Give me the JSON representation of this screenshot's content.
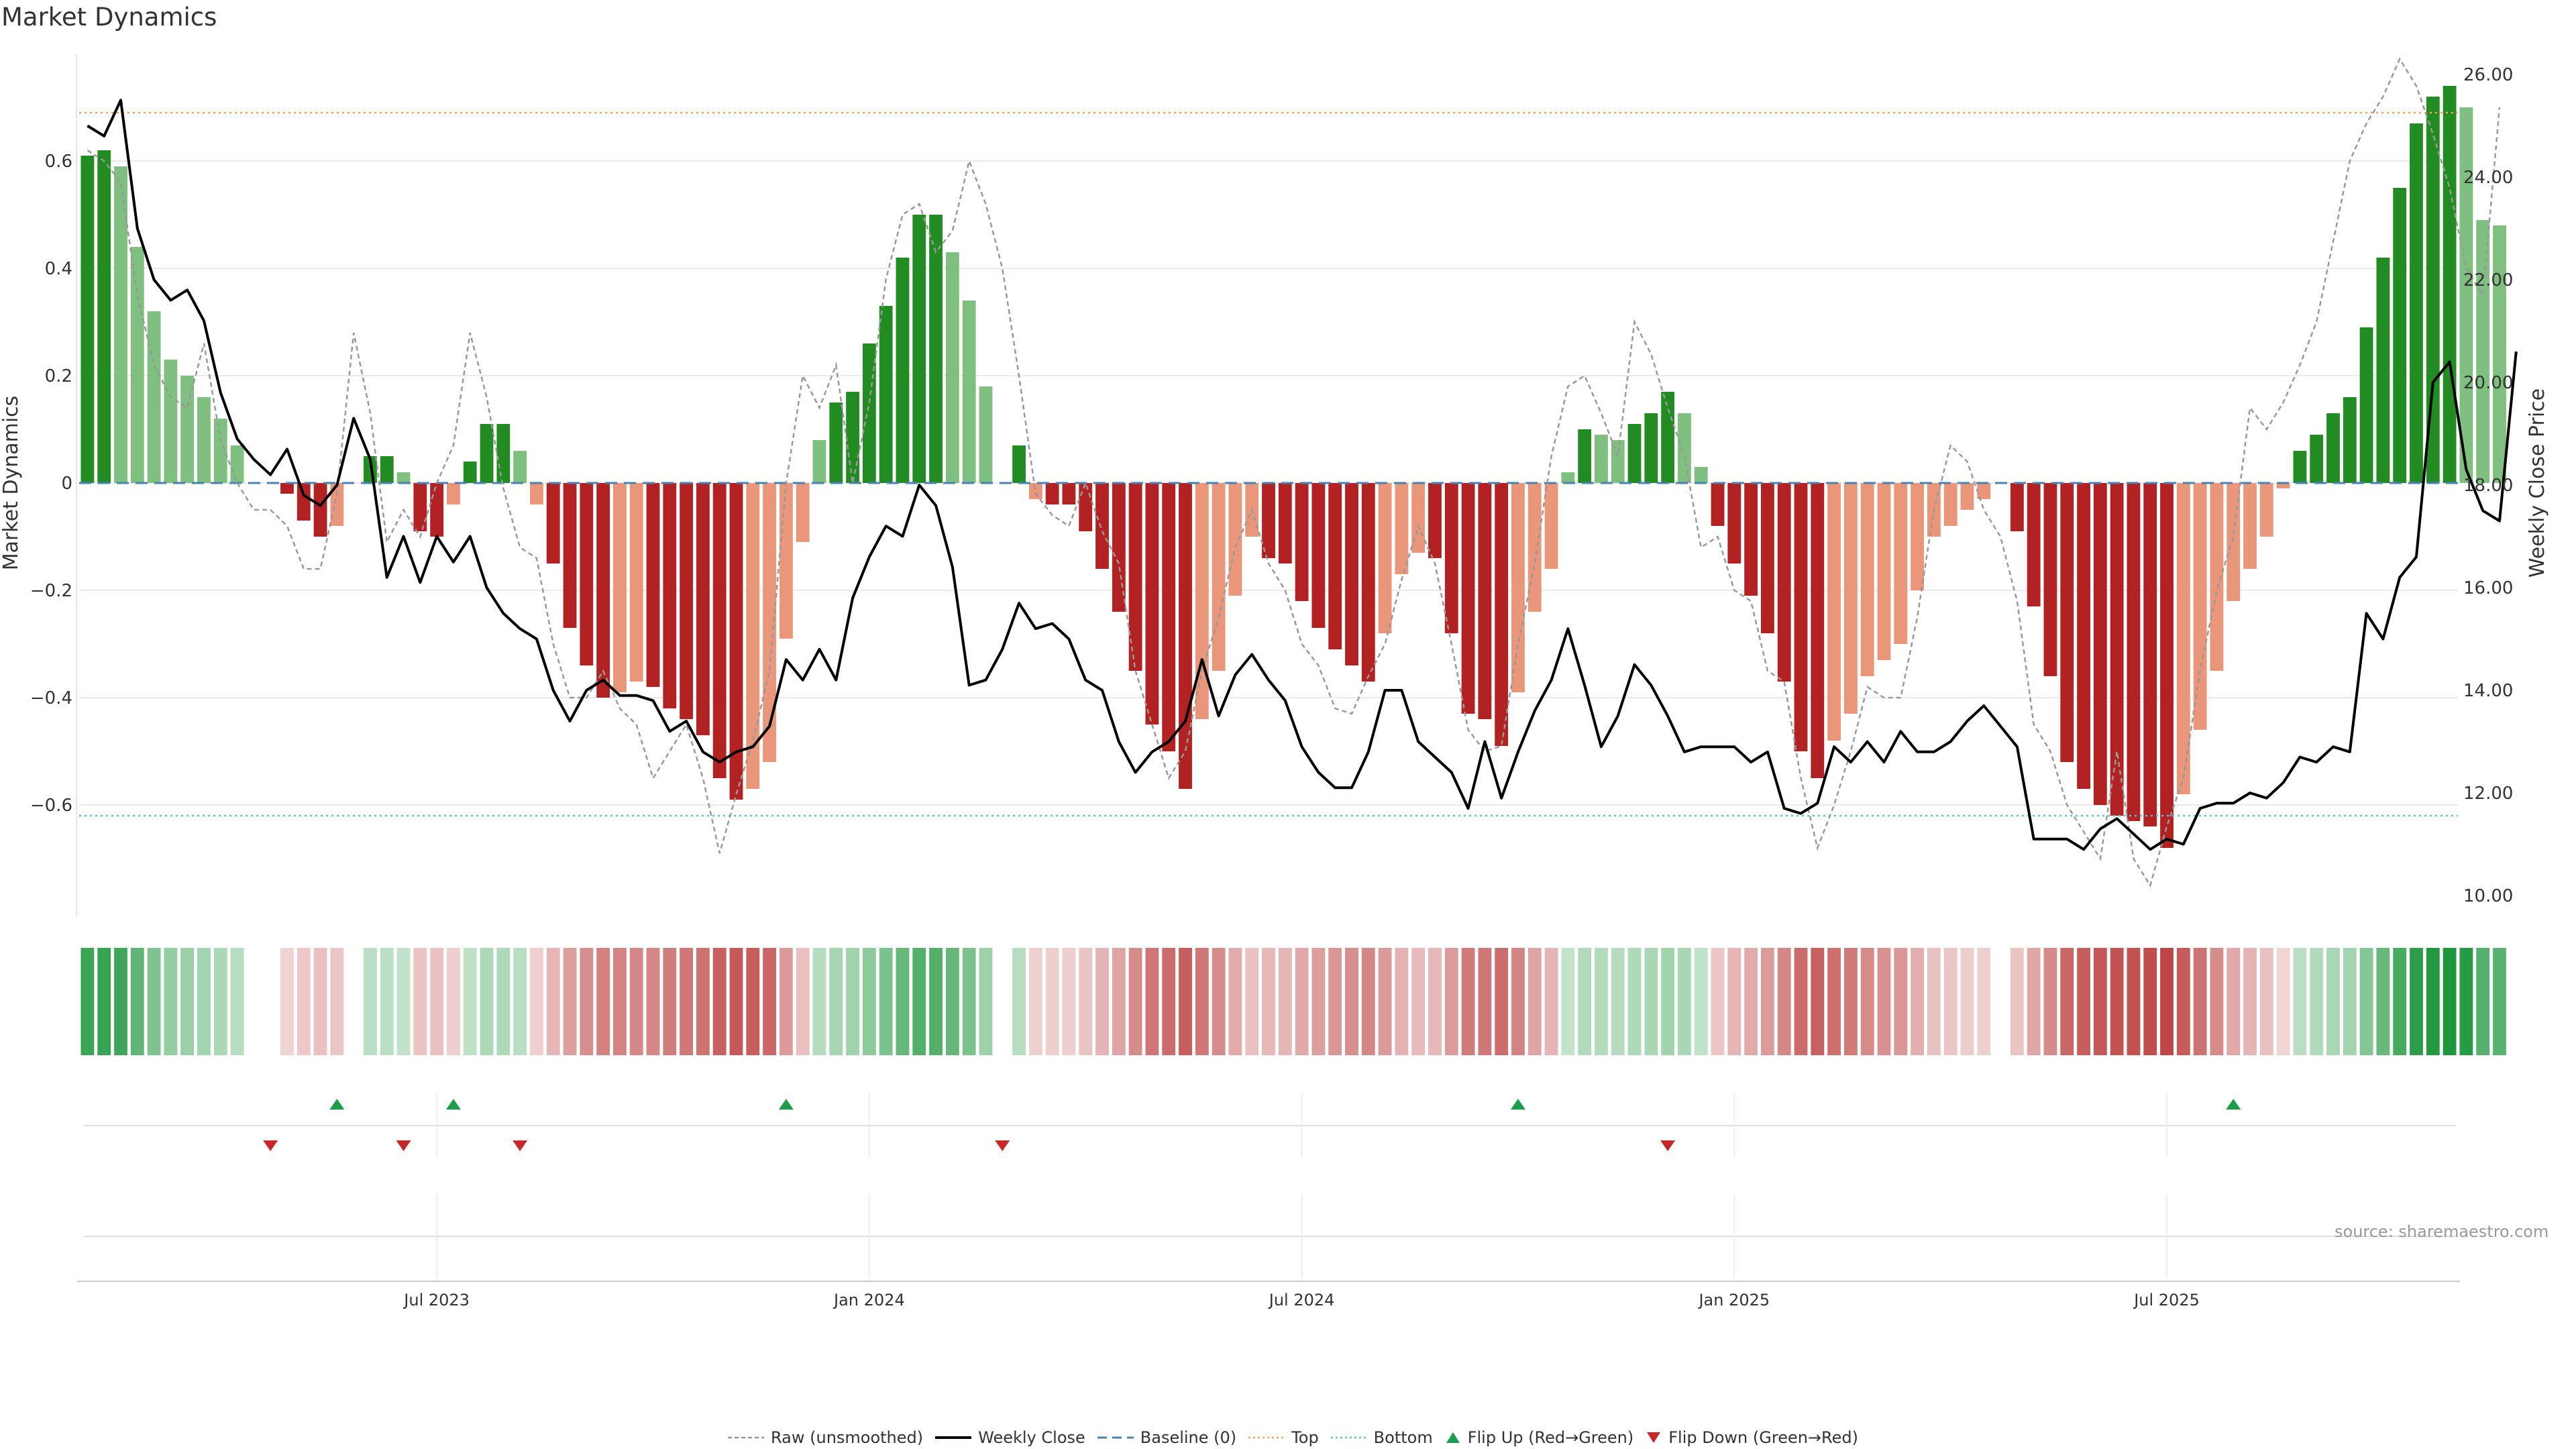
{
  "title": "Market Dynamics",
  "source": "source: sharemaestro.com",
  "legend": {
    "raw": "Raw (unsmoothed)",
    "close": "Weekly Close",
    "baseline": "Baseline (0)",
    "top": "Top",
    "bottom": "Bottom",
    "flip_up": "Flip Up (Red→Green)",
    "flip_down": "Flip Down (Green→Red)"
  },
  "colors": {
    "strong_green": "#228b22",
    "light_green": "#7fbf7f",
    "strong_red": "#b22222",
    "light_red": "#e9967a",
    "close_line": "#000000",
    "raw_line": "#999999",
    "top_line": "#f4a460",
    "bottom_line": "#5bc0de",
    "baseline": "#4682b4",
    "flip_up": "#1e9e4a",
    "flip_down": "#c62828"
  },
  "chart_data": {
    "type": "bar",
    "title": "Market Dynamics",
    "ylabel": "Market Dynamics",
    "ylabel_right": "Weekly Close Price",
    "ylim": [
      -0.8,
      0.8
    ],
    "yticks": [
      "0.6",
      "0.4",
      "0.2",
      "0",
      "−0.2",
      "−0.4",
      "−0.6"
    ],
    "ylim_right": [
      9.5,
      26.5
    ],
    "yticks_right": [
      "26.00",
      "24.00",
      "22.00",
      "20.00",
      "18.00",
      "16.00",
      "14.00",
      "12.00",
      "10.00"
    ],
    "top_level": 0.69,
    "bottom_level": -0.62,
    "x_ticks": [
      {
        "label": "Jul 2023",
        "week": 21
      },
      {
        "label": "Jan 2024",
        "week": 47
      },
      {
        "label": "Jul 2024",
        "week": 73
      },
      {
        "label": "Jan 2025",
        "week": 99
      },
      {
        "label": "Jul 2025",
        "week": 125
      }
    ],
    "weeks": 143,
    "values": [
      0.61,
      0.62,
      0.59,
      0.44,
      0.32,
      0.23,
      0.2,
      0.16,
      0.12,
      0.07,
      0.0,
      0.0,
      -0.02,
      -0.07,
      -0.1,
      -0.08,
      0.0,
      0.05,
      0.05,
      0.02,
      -0.09,
      -0.1,
      -0.04,
      0.04,
      0.11,
      0.11,
      0.06,
      -0.04,
      -0.15,
      -0.27,
      -0.34,
      -0.4,
      -0.39,
      -0.37,
      -0.38,
      -0.42,
      -0.44,
      -0.47,
      -0.55,
      -0.59,
      -0.57,
      -0.52,
      -0.29,
      -0.11,
      0.08,
      0.15,
      0.17,
      0.26,
      0.33,
      0.42,
      0.5,
      0.5,
      0.43,
      0.34,
      0.18,
      0.0,
      0.07,
      -0.03,
      -0.04,
      -0.04,
      -0.09,
      -0.16,
      -0.24,
      -0.35,
      -0.45,
      -0.5,
      -0.57,
      -0.44,
      -0.35,
      -0.21,
      -0.1,
      -0.14,
      -0.15,
      -0.22,
      -0.27,
      -0.31,
      -0.34,
      -0.37,
      -0.28,
      -0.17,
      -0.13,
      -0.14,
      -0.28,
      -0.43,
      -0.44,
      -0.49,
      -0.39,
      -0.24,
      -0.16,
      0.02,
      0.1,
      0.09,
      0.08,
      0.11,
      0.13,
      0.17,
      0.13,
      0.03,
      -0.08,
      -0.15,
      -0.21,
      -0.28,
      -0.37,
      -0.5,
      -0.55,
      -0.48,
      -0.43,
      -0.36,
      -0.33,
      -0.3,
      -0.2,
      -0.1,
      -0.08,
      -0.05,
      -0.03,
      0.0,
      -0.09,
      -0.23,
      -0.36,
      -0.52,
      -0.57,
      -0.6,
      -0.62,
      -0.63,
      -0.64,
      -0.68,
      -0.58,
      -0.46,
      -0.35,
      -0.22,
      -0.16,
      -0.1,
      -0.01,
      0.06,
      0.09,
      0.13,
      0.16,
      0.29,
      0.42,
      0.55,
      0.67,
      0.72,
      0.74,
      0.7,
      0.49,
      0.48
    ],
    "series": [
      {
        "name": "Raw (unsmoothed)",
        "values": [
          0.62,
          0.6,
          0.56,
          0.35,
          0.22,
          0.16,
          0.14,
          0.26,
          0.08,
          0.0,
          -0.05,
          -0.05,
          -0.08,
          -0.16,
          -0.16,
          -0.02,
          0.28,
          0.13,
          -0.11,
          -0.05,
          -0.1,
          0.0,
          0.07,
          0.28,
          0.16,
          -0.01,
          -0.12,
          -0.14,
          -0.3,
          -0.4,
          -0.4,
          -0.35,
          -0.42,
          -0.45,
          -0.55,
          -0.5,
          -0.45,
          -0.55,
          -0.69,
          -0.58,
          -0.48,
          -0.35,
          0.0,
          0.2,
          0.14,
          0.22,
          0.0,
          0.15,
          0.38,
          0.5,
          0.52,
          0.43,
          0.47,
          0.6,
          0.52,
          0.4,
          0.2,
          -0.02,
          -0.06,
          -0.08,
          0.0,
          -0.09,
          -0.15,
          -0.35,
          -0.45,
          -0.55,
          -0.5,
          -0.35,
          -0.25,
          -0.12,
          -0.05,
          -0.15,
          -0.2,
          -0.3,
          -0.34,
          -0.42,
          -0.43,
          -0.36,
          -0.3,
          -0.18,
          -0.08,
          -0.15,
          -0.3,
          -0.46,
          -0.5,
          -0.49,
          -0.3,
          -0.15,
          0.05,
          0.18,
          0.2,
          0.13,
          0.05,
          0.3,
          0.24,
          0.14,
          0.05,
          -0.12,
          -0.1,
          -0.2,
          -0.22,
          -0.35,
          -0.37,
          -0.55,
          -0.68,
          -0.6,
          -0.5,
          -0.38,
          -0.4,
          -0.4,
          -0.25,
          -0.05,
          0.07,
          0.04,
          -0.05,
          -0.1,
          -0.22,
          -0.45,
          -0.5,
          -0.6,
          -0.65,
          -0.7,
          -0.5,
          -0.7,
          -0.75,
          -0.64,
          -0.55,
          -0.35,
          -0.2,
          -0.1,
          0.14,
          0.1,
          0.15,
          0.22,
          0.3,
          0.45,
          0.6,
          0.67,
          0.72,
          0.79,
          0.74,
          0.65,
          0.55,
          0.4,
          0.35,
          0.7
        ]
      },
      {
        "name": "Weekly Close",
        "axis": "right",
        "values": [
          25.0,
          24.8,
          25.5,
          23.0,
          22.0,
          21.6,
          21.8,
          21.2,
          19.8,
          18.9,
          18.5,
          18.2,
          18.7,
          17.8,
          17.6,
          18.0,
          19.3,
          18.5,
          16.2,
          17.0,
          16.1,
          17.0,
          16.5,
          17.0,
          16.0,
          15.5,
          15.2,
          15.0,
          14.0,
          13.4,
          14.0,
          14.2,
          13.9,
          13.9,
          13.8,
          13.2,
          13.4,
          12.8,
          12.6,
          12.8,
          12.9,
          13.3,
          14.6,
          14.2,
          14.8,
          14.2,
          15.8,
          16.6,
          17.2,
          17.0,
          18.0,
          17.6,
          16.4,
          14.1,
          14.2,
          14.8,
          15.7,
          15.2,
          15.3,
          15.0,
          14.2,
          14.0,
          13.0,
          12.4,
          12.8,
          13.0,
          13.4,
          14.6,
          13.5,
          14.3,
          14.7,
          14.2,
          13.8,
          12.9,
          12.4,
          12.1,
          12.1,
          12.8,
          14.0,
          14.0,
          13.0,
          12.7,
          12.4,
          11.7,
          13.0,
          11.9,
          12.8,
          13.6,
          14.2,
          15.2,
          14.1,
          12.9,
          13.5,
          14.5,
          14.1,
          13.5,
          12.8,
          12.9,
          12.9,
          12.9,
          12.6,
          12.8,
          11.7,
          11.6,
          11.8,
          12.9,
          12.6,
          13.0,
          12.6,
          13.2,
          12.8,
          12.8,
          13.0,
          13.4,
          13.7,
          13.3,
          12.9,
          11.1,
          11.1,
          11.1,
          10.9,
          11.3,
          11.5,
          11.2,
          10.9,
          11.1,
          11.0,
          11.7,
          11.8,
          11.8,
          12.0,
          11.9,
          12.2,
          12.7,
          12.6,
          12.9,
          12.8,
          15.5,
          15.0,
          16.2,
          16.6,
          20.0,
          20.4,
          18.3,
          17.5,
          17.3,
          20.6
        ]
      }
    ],
    "flip_up_weeks": [
      15,
      22,
      42,
      86,
      129
    ],
    "flip_down_weeks": [
      11,
      19,
      26,
      55,
      95
    ]
  }
}
